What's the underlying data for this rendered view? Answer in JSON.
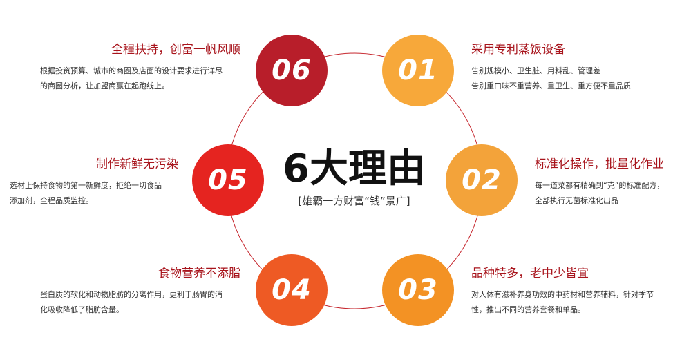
{
  "center": {
    "title": "6大理由",
    "subtitle": "[雄霸一方财富“钱”景广]"
  },
  "colors": {
    "ring": "#c6272e",
    "title": "#a8141c",
    "n01": "#f7a83a",
    "n02": "#f3a33a",
    "n03": "#f39224",
    "n04": "#ee5a24",
    "n05": "#e52420",
    "n06": "#b81e2a"
  },
  "reasons": [
    {
      "num": "01",
      "title": "采用专利蒸饭设备",
      "desc": [
        "告别规模小、卫生脏、用料乱、管理差",
        "告别重口味不重营养、重卫生、重方便不重品质"
      ]
    },
    {
      "num": "02",
      "title": "标准化操作，批量化作业",
      "desc": [
        "每一道菜都有精确到“克”的标准配方，",
        "全部执行无菌标准化出品"
      ]
    },
    {
      "num": "03",
      "title": "品种特多，老中少皆宜",
      "desc": [
        "对人体有滋补养身功效的中药材和营养辅料，针对季节",
        "性，推出不同的营养套餐和单品。"
      ]
    },
    {
      "num": "04",
      "title": "食物营养不添脂",
      "desc": [
        "蛋白质的软化和动物脂肪的分离作用，更利于肠胃的消",
        "化吸收降低了脂肪含量。"
      ]
    },
    {
      "num": "05",
      "title": "制作新鲜无污染",
      "desc": [
        "选材上保持食物的第一新鲜度，拒绝一切食品",
        "添加剂，全程品质监控。"
      ]
    },
    {
      "num": "06",
      "title": "全程扶持，创富一帆风顺",
      "desc": [
        "根据投资预算、城市的商圈及店面的设计要求进行详尽",
        "的商圈分析，让加盟商赢在起跑线上。"
      ]
    }
  ]
}
